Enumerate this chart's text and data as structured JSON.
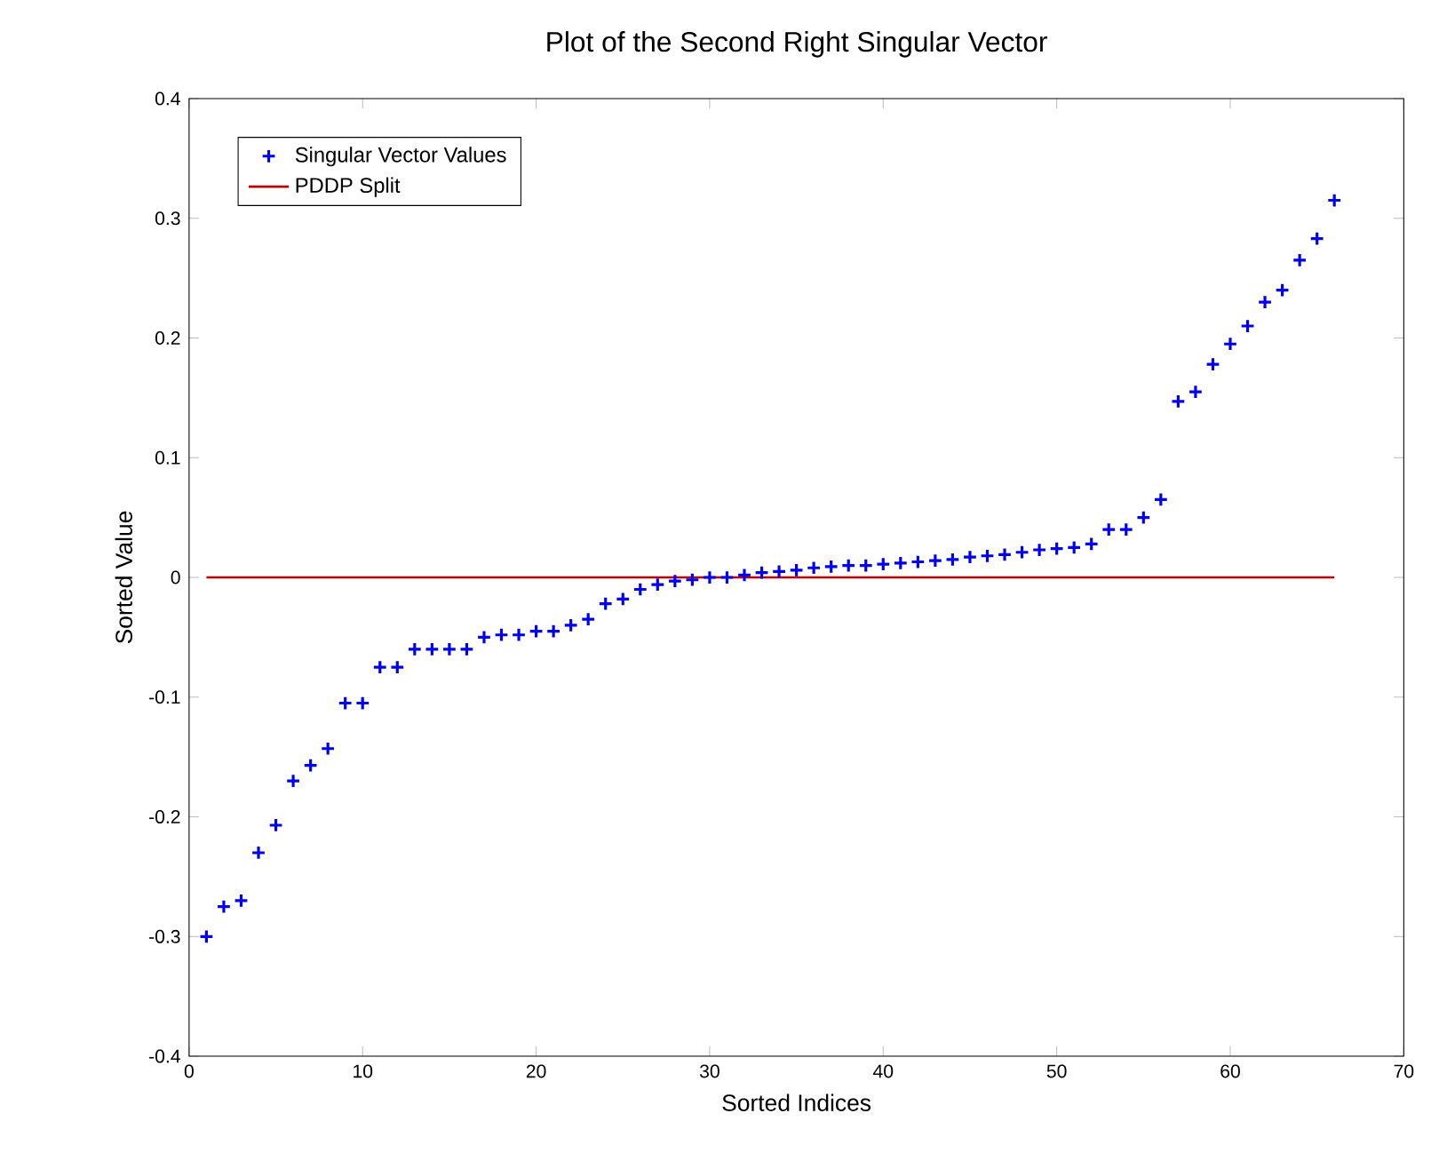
{
  "chart_data": {
    "type": "scatter",
    "title": "Plot of the Second Right Singular Vector",
    "xlabel": "Sorted Indices",
    "ylabel": "Sorted Value",
    "xlim": [
      0,
      70
    ],
    "xticks": [
      0,
      10,
      20,
      30,
      40,
      50,
      60,
      70
    ],
    "ylim": [
      -0.4,
      0.4
    ],
    "yticks": [
      -0.4,
      -0.3,
      -0.2,
      -0.1,
      0,
      0.1,
      0.2,
      0.3,
      0.4
    ],
    "legend": "top left",
    "grid": false,
    "series": [
      {
        "name": "Singular Vector Values",
        "marker": "cross",
        "color": "#0000ee",
        "x": [
          1,
          2,
          3,
          4,
          5,
          6,
          7,
          8,
          9,
          10,
          11,
          12,
          13,
          14,
          15,
          16,
          17,
          18,
          19,
          20,
          21,
          22,
          23,
          24,
          25,
          26,
          27,
          28,
          29,
          30,
          31,
          32,
          33,
          34,
          35,
          36,
          37,
          38,
          39,
          40,
          41,
          42,
          43,
          44,
          45,
          46,
          47,
          48,
          49,
          50,
          51,
          52,
          53,
          54,
          55,
          56,
          57,
          58,
          59,
          60,
          61,
          62,
          63,
          64,
          65,
          66
        ],
        "values": [
          -0.3,
          -0.275,
          -0.27,
          -0.23,
          -0.207,
          -0.17,
          -0.157,
          -0.143,
          -0.105,
          -0.105,
          -0.075,
          -0.075,
          -0.06,
          -0.06,
          -0.06,
          -0.06,
          -0.05,
          -0.048,
          -0.048,
          -0.045,
          -0.045,
          -0.04,
          -0.035,
          -0.022,
          -0.018,
          -0.01,
          -0.006,
          -0.003,
          -0.002,
          0,
          0,
          0.002,
          0.004,
          0.005,
          0.006,
          0.008,
          0.009,
          0.01,
          0.01,
          0.011,
          0.012,
          0.013,
          0.014,
          0.015,
          0.017,
          0.018,
          0.019,
          0.021,
          0.023,
          0.024,
          0.025,
          0.028,
          0.04,
          0.04,
          0.05,
          0.065,
          0.147,
          0.155,
          0.178,
          0.195,
          0.21,
          0.23,
          0.24,
          0.265,
          0.283,
          0.315
        ]
      },
      {
        "name": "PDDP Split",
        "type": "line",
        "line_style": "solid",
        "marker": "none",
        "color": "#c00000",
        "x": [
          1,
          66
        ],
        "values": [
          0,
          0
        ]
      }
    ]
  }
}
